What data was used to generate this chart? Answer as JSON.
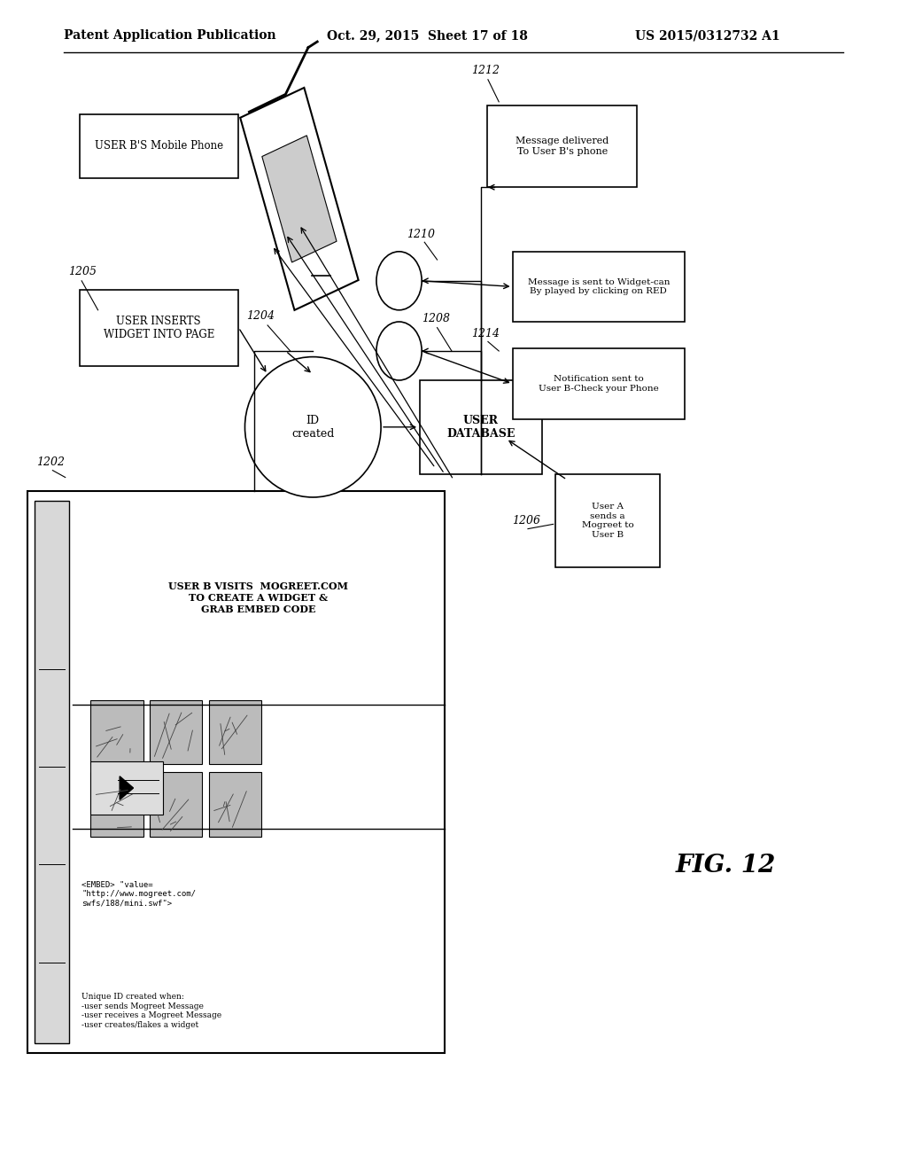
{
  "background_color": "#ffffff",
  "header_line1": "Patent Application Publication",
  "header_line2": "Oct. 29, 2015  Sheet 17 of 18",
  "header_line3": "US 2015/0312732 A1",
  "fig_label": "FIG. 12"
}
